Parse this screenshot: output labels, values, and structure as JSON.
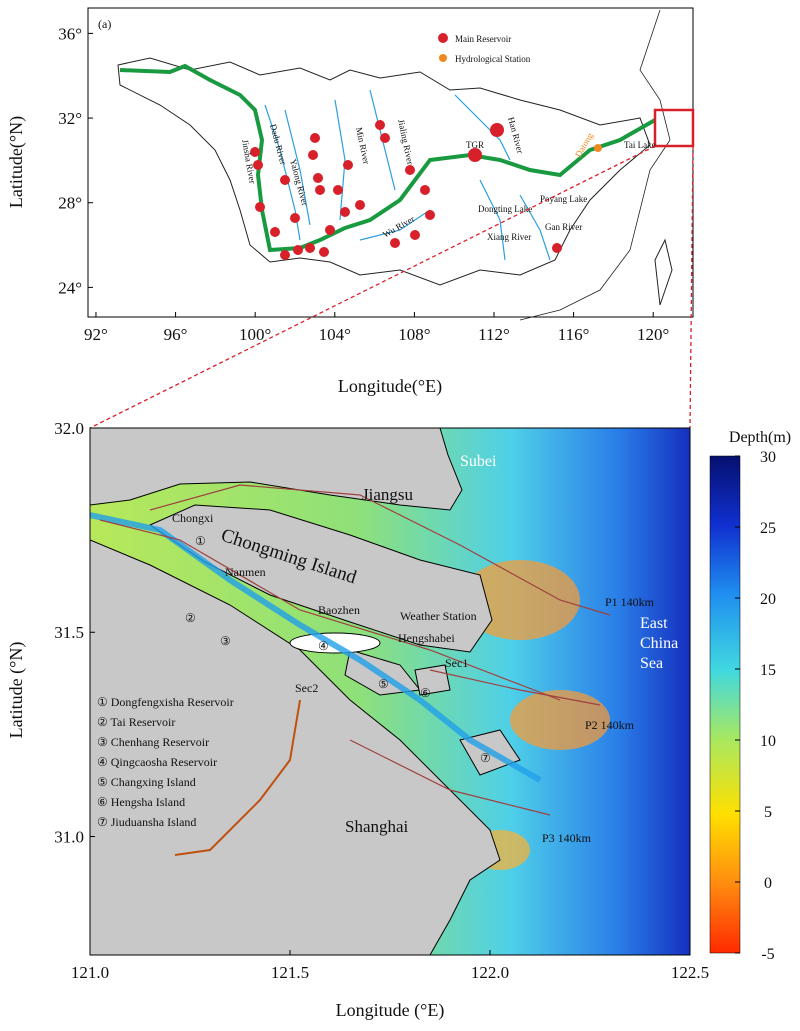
{
  "panel_a": {
    "label": "(a)",
    "legend": [
      "Main Reservoir",
      "Hydrological Station"
    ],
    "x_label": "Longitude(°E)",
    "y_label": "Latitude(°N)",
    "xlim": [
      91.6,
      122
    ],
    "ylim": [
      22.6,
      37.2
    ],
    "xticks": [
      {
        "value": 92,
        "label": "92°"
      },
      {
        "value": 96,
        "label": "96°"
      },
      {
        "value": 100,
        "label": "100°"
      },
      {
        "value": 104,
        "label": "104°"
      },
      {
        "value": 108,
        "label": "108°"
      },
      {
        "value": 112,
        "label": "112°"
      },
      {
        "value": 116,
        "label": "116°"
      },
      {
        "value": 120,
        "label": "120°"
      }
    ],
    "yticks": [
      {
        "value": 24,
        "label": "24°"
      },
      {
        "value": 28,
        "label": "28°"
      },
      {
        "value": 32,
        "label": "32°"
      },
      {
        "value": 36,
        "label": "36°"
      }
    ],
    "places": [
      "Jinsha River",
      "Dadu River",
      "Yalong River",
      "Min River",
      "Jialing River",
      "TGR",
      "Han River",
      "Datong",
      "Tai Lake",
      "Poyang Lake",
      "Dongting Lake",
      "Xiang River",
      "Gan River",
      "Wu River"
    ]
  },
  "panel_b": {
    "x_label": "Longitude (°E)",
    "y_label": "Latitude (°N)",
    "xlim": [
      121,
      122.5
    ],
    "ylim": [
      30.71,
      32.0
    ],
    "xticks": [
      {
        "value": 121,
        "label": "121.0"
      },
      121.5,
      {
        "value": 122,
        "label": "122.0"
      },
      122.5
    ],
    "yticks": [
      {
        "value": 31,
        "label": "31.0"
      },
      31.5,
      {
        "value": 32,
        "label": "32.0"
      }
    ],
    "colorbar": {
      "title": "Depth(m)",
      "lim": [
        -5,
        30
      ],
      "ticks": [
        30,
        25,
        20,
        15,
        10,
        5,
        0,
        -5
      ]
    },
    "places": [
      "Subei",
      "Jiangsu",
      "Chongxi",
      "Chongming Island",
      "Nanmen",
      "Baozhen",
      "Weather Station",
      "Hengshabei",
      "Sec1",
      "Sec2",
      "P1 140km",
      "P2 140km",
      "P3 140km",
      "Shanghai"
    ],
    "sea": [
      "East",
      "China",
      "Sea"
    ],
    "markers": [
      "①",
      "②",
      "③",
      "④",
      "⑤",
      "⑥",
      "⑦"
    ],
    "legend": [
      "① Dongfengxisha Reservoir",
      "② Tai Reservoir",
      "③ Chenhang Reservoir",
      "④ Qingcaosha Reservoir",
      "⑤ Changxing Island",
      "⑥ Hengsha Island",
      "⑦ Jiuduansha Island"
    ]
  }
}
